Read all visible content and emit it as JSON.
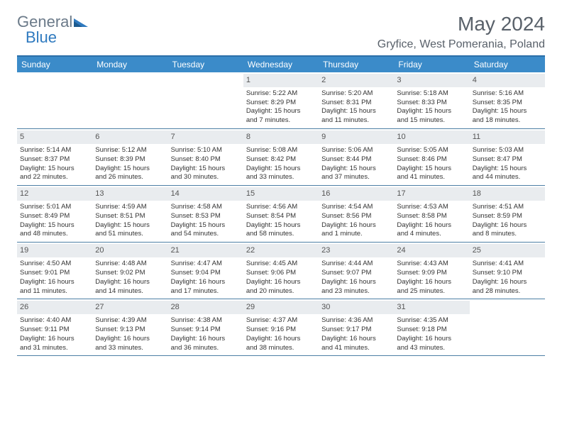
{
  "logo": {
    "general": "General",
    "blue": "Blue"
  },
  "title": "May 2024",
  "location": "Gryfice, West Pomerania, Poland",
  "colors": {
    "header_bg": "#3b8bc9",
    "header_text": "#ffffff",
    "border": "#2b6fa8",
    "week_border": "#4d7fa5",
    "daynum_bg": "#e9ecef",
    "text": "#333333",
    "title_color": "#59616a",
    "logo_general": "#6b7a89",
    "logo_blue": "#2f7abf"
  },
  "day_names": [
    "Sunday",
    "Monday",
    "Tuesday",
    "Wednesday",
    "Thursday",
    "Friday",
    "Saturday"
  ],
  "weeks": [
    [
      {
        "empty": true
      },
      {
        "empty": true
      },
      {
        "empty": true
      },
      {
        "day": "1",
        "sunrise": "Sunrise: 5:22 AM",
        "sunset": "Sunset: 8:29 PM",
        "d1": "Daylight: 15 hours",
        "d2": "and 7 minutes."
      },
      {
        "day": "2",
        "sunrise": "Sunrise: 5:20 AM",
        "sunset": "Sunset: 8:31 PM",
        "d1": "Daylight: 15 hours",
        "d2": "and 11 minutes."
      },
      {
        "day": "3",
        "sunrise": "Sunrise: 5:18 AM",
        "sunset": "Sunset: 8:33 PM",
        "d1": "Daylight: 15 hours",
        "d2": "and 15 minutes."
      },
      {
        "day": "4",
        "sunrise": "Sunrise: 5:16 AM",
        "sunset": "Sunset: 8:35 PM",
        "d1": "Daylight: 15 hours",
        "d2": "and 18 minutes."
      }
    ],
    [
      {
        "day": "5",
        "sunrise": "Sunrise: 5:14 AM",
        "sunset": "Sunset: 8:37 PM",
        "d1": "Daylight: 15 hours",
        "d2": "and 22 minutes."
      },
      {
        "day": "6",
        "sunrise": "Sunrise: 5:12 AM",
        "sunset": "Sunset: 8:39 PM",
        "d1": "Daylight: 15 hours",
        "d2": "and 26 minutes."
      },
      {
        "day": "7",
        "sunrise": "Sunrise: 5:10 AM",
        "sunset": "Sunset: 8:40 PM",
        "d1": "Daylight: 15 hours",
        "d2": "and 30 minutes."
      },
      {
        "day": "8",
        "sunrise": "Sunrise: 5:08 AM",
        "sunset": "Sunset: 8:42 PM",
        "d1": "Daylight: 15 hours",
        "d2": "and 33 minutes."
      },
      {
        "day": "9",
        "sunrise": "Sunrise: 5:06 AM",
        "sunset": "Sunset: 8:44 PM",
        "d1": "Daylight: 15 hours",
        "d2": "and 37 minutes."
      },
      {
        "day": "10",
        "sunrise": "Sunrise: 5:05 AM",
        "sunset": "Sunset: 8:46 PM",
        "d1": "Daylight: 15 hours",
        "d2": "and 41 minutes."
      },
      {
        "day": "11",
        "sunrise": "Sunrise: 5:03 AM",
        "sunset": "Sunset: 8:47 PM",
        "d1": "Daylight: 15 hours",
        "d2": "and 44 minutes."
      }
    ],
    [
      {
        "day": "12",
        "sunrise": "Sunrise: 5:01 AM",
        "sunset": "Sunset: 8:49 PM",
        "d1": "Daylight: 15 hours",
        "d2": "and 48 minutes."
      },
      {
        "day": "13",
        "sunrise": "Sunrise: 4:59 AM",
        "sunset": "Sunset: 8:51 PM",
        "d1": "Daylight: 15 hours",
        "d2": "and 51 minutes."
      },
      {
        "day": "14",
        "sunrise": "Sunrise: 4:58 AM",
        "sunset": "Sunset: 8:53 PM",
        "d1": "Daylight: 15 hours",
        "d2": "and 54 minutes."
      },
      {
        "day": "15",
        "sunrise": "Sunrise: 4:56 AM",
        "sunset": "Sunset: 8:54 PM",
        "d1": "Daylight: 15 hours",
        "d2": "and 58 minutes."
      },
      {
        "day": "16",
        "sunrise": "Sunrise: 4:54 AM",
        "sunset": "Sunset: 8:56 PM",
        "d1": "Daylight: 16 hours",
        "d2": "and 1 minute."
      },
      {
        "day": "17",
        "sunrise": "Sunrise: 4:53 AM",
        "sunset": "Sunset: 8:58 PM",
        "d1": "Daylight: 16 hours",
        "d2": "and 4 minutes."
      },
      {
        "day": "18",
        "sunrise": "Sunrise: 4:51 AM",
        "sunset": "Sunset: 8:59 PM",
        "d1": "Daylight: 16 hours",
        "d2": "and 8 minutes."
      }
    ],
    [
      {
        "day": "19",
        "sunrise": "Sunrise: 4:50 AM",
        "sunset": "Sunset: 9:01 PM",
        "d1": "Daylight: 16 hours",
        "d2": "and 11 minutes."
      },
      {
        "day": "20",
        "sunrise": "Sunrise: 4:48 AM",
        "sunset": "Sunset: 9:02 PM",
        "d1": "Daylight: 16 hours",
        "d2": "and 14 minutes."
      },
      {
        "day": "21",
        "sunrise": "Sunrise: 4:47 AM",
        "sunset": "Sunset: 9:04 PM",
        "d1": "Daylight: 16 hours",
        "d2": "and 17 minutes."
      },
      {
        "day": "22",
        "sunrise": "Sunrise: 4:45 AM",
        "sunset": "Sunset: 9:06 PM",
        "d1": "Daylight: 16 hours",
        "d2": "and 20 minutes."
      },
      {
        "day": "23",
        "sunrise": "Sunrise: 4:44 AM",
        "sunset": "Sunset: 9:07 PM",
        "d1": "Daylight: 16 hours",
        "d2": "and 23 minutes."
      },
      {
        "day": "24",
        "sunrise": "Sunrise: 4:43 AM",
        "sunset": "Sunset: 9:09 PM",
        "d1": "Daylight: 16 hours",
        "d2": "and 25 minutes."
      },
      {
        "day": "25",
        "sunrise": "Sunrise: 4:41 AM",
        "sunset": "Sunset: 9:10 PM",
        "d1": "Daylight: 16 hours",
        "d2": "and 28 minutes."
      }
    ],
    [
      {
        "day": "26",
        "sunrise": "Sunrise: 4:40 AM",
        "sunset": "Sunset: 9:11 PM",
        "d1": "Daylight: 16 hours",
        "d2": "and 31 minutes."
      },
      {
        "day": "27",
        "sunrise": "Sunrise: 4:39 AM",
        "sunset": "Sunset: 9:13 PM",
        "d1": "Daylight: 16 hours",
        "d2": "and 33 minutes."
      },
      {
        "day": "28",
        "sunrise": "Sunrise: 4:38 AM",
        "sunset": "Sunset: 9:14 PM",
        "d1": "Daylight: 16 hours",
        "d2": "and 36 minutes."
      },
      {
        "day": "29",
        "sunrise": "Sunrise: 4:37 AM",
        "sunset": "Sunset: 9:16 PM",
        "d1": "Daylight: 16 hours",
        "d2": "and 38 minutes."
      },
      {
        "day": "30",
        "sunrise": "Sunrise: 4:36 AM",
        "sunset": "Sunset: 9:17 PM",
        "d1": "Daylight: 16 hours",
        "d2": "and 41 minutes."
      },
      {
        "day": "31",
        "sunrise": "Sunrise: 4:35 AM",
        "sunset": "Sunset: 9:18 PM",
        "d1": "Daylight: 16 hours",
        "d2": "and 43 minutes."
      },
      {
        "empty": true
      }
    ]
  ]
}
